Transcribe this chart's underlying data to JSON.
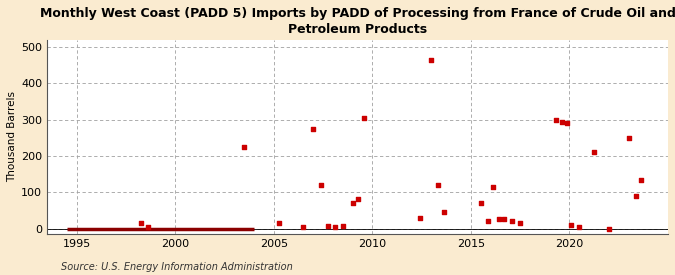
{
  "title": "Monthly West Coast (PADD 5) Imports by PADD of Processing from France of Crude Oil and\nPetroleum Products",
  "ylabel": "Thousand Barrels",
  "source": "Source: U.S. Energy Information Administration",
  "background_color": "#faebd0",
  "plot_background_color": "#ffffff",
  "marker_color": "#cc0000",
  "baseline_color": "#8b0000",
  "xlim": [
    1993.5,
    2025.0
  ],
  "ylim": [
    -15,
    520
  ],
  "yticks": [
    0,
    100,
    200,
    300,
    400,
    500
  ],
  "xticks": [
    1995,
    2000,
    2005,
    2010,
    2015,
    2020
  ],
  "baseline_x": [
    1994.5,
    2004.0
  ],
  "data_points": [
    [
      1998.25,
      15
    ],
    [
      1998.6,
      5
    ],
    [
      2003.5,
      224
    ],
    [
      2005.25,
      15
    ],
    [
      2006.5,
      5
    ],
    [
      2007.0,
      275
    ],
    [
      2007.4,
      120
    ],
    [
      2007.75,
      8
    ],
    [
      2008.1,
      5
    ],
    [
      2008.5,
      8
    ],
    [
      2009.0,
      70
    ],
    [
      2009.25,
      80
    ],
    [
      2009.6,
      305
    ],
    [
      2012.4,
      30
    ],
    [
      2013.0,
      465
    ],
    [
      2013.35,
      120
    ],
    [
      2013.65,
      45
    ],
    [
      2015.5,
      70
    ],
    [
      2015.85,
      20
    ],
    [
      2016.1,
      115
    ],
    [
      2016.4,
      25
    ],
    [
      2016.7,
      25
    ],
    [
      2017.1,
      20
    ],
    [
      2017.5,
      15
    ],
    [
      2019.3,
      300
    ],
    [
      2019.6,
      295
    ],
    [
      2019.85,
      290
    ],
    [
      2020.1,
      10
    ],
    [
      2020.5,
      5
    ],
    [
      2021.25,
      210
    ],
    [
      2022.0,
      0
    ],
    [
      2023.0,
      250
    ],
    [
      2023.35,
      90
    ],
    [
      2023.65,
      135
    ]
  ]
}
